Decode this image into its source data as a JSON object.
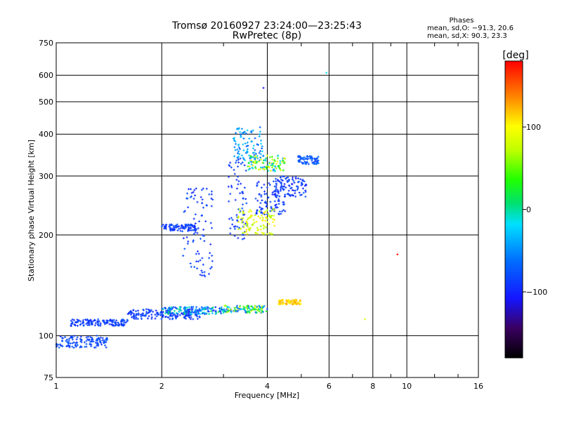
{
  "header": {
    "title_line1": "Tromsø 20160927 23:24:00—23:25:43",
    "title_line2": "RwPretec (8p)",
    "phase_title": "Phases",
    "phase_o": "mean, sd,O: −91.3, 20.6",
    "phase_x": "mean, sd,X:  90.3, 23.3"
  },
  "colorbar": {
    "label": "[deg]",
    "range": [
      -180,
      180
    ],
    "ticks": [
      100,
      0,
      -100
    ],
    "tick_labels": [
      "100",
      "0",
      "−100"
    ]
  },
  "chart_data": {
    "type": "scatter",
    "xlabel": "Frequency [MHz]",
    "ylabel": "Stationary phase Virtual Height [km]",
    "xscale": "log",
    "yscale": "log",
    "xlim": [
      1,
      16
    ],
    "ylim": [
      75,
      750
    ],
    "xticks": [
      1,
      2,
      4,
      6,
      8,
      10,
      16
    ],
    "xtick_labels": [
      "1",
      "2",
      "4",
      "6",
      "8",
      "10",
      "16"
    ],
    "yticks": [
      75,
      100,
      200,
      300,
      400,
      500,
      600,
      750
    ],
    "ytick_labels": [
      "75",
      "100",
      "200",
      "300",
      "400",
      "500",
      "600",
      "750"
    ],
    "grid": true,
    "point_groups": [
      {
        "f": [
          1.0,
          1.4
        ],
        "h": [
          92,
          100
        ],
        "phase": [
          -95,
          -70
        ]
      },
      {
        "f": [
          1.1,
          1.6
        ],
        "h": [
          107,
          112
        ],
        "phase": [
          -100,
          -75
        ]
      },
      {
        "f": [
          1.6,
          2.6
        ],
        "h": [
          112,
          120
        ],
        "phase": [
          -100,
          -75
        ]
      },
      {
        "f": [
          2.0,
          3.0
        ],
        "h": [
          116,
          122
        ],
        "phase": [
          -110,
          20
        ]
      },
      {
        "f": [
          3.0,
          4.0
        ],
        "h": [
          117,
          123
        ],
        "phase": [
          -90,
          110
        ]
      },
      {
        "f": [
          4.3,
          5.0
        ],
        "h": [
          124,
          128
        ],
        "phase": [
          95,
          130
        ]
      },
      {
        "f": [
          2.0,
          2.5
        ],
        "h": [
          205,
          215
        ],
        "phase": [
          -100,
          -75
        ]
      },
      {
        "f": [
          2.3,
          2.8
        ],
        "h": [
          150,
          280
        ],
        "phase": [
          -100,
          -75
        ]
      },
      {
        "f": [
          3.1,
          3.5
        ],
        "h": [
          190,
          340
        ],
        "phase": [
          -100,
          -75
        ]
      },
      {
        "f": [
          3.2,
          3.9
        ],
        "h": [
          330,
          420
        ],
        "phase": [
          -80,
          -20
        ]
      },
      {
        "f": [
          3.5,
          4.5
        ],
        "h": [
          310,
          345
        ],
        "phase": [
          -60,
          110
        ]
      },
      {
        "f": [
          3.7,
          4.5
        ],
        "h": [
          230,
          290
        ],
        "phase": [
          -100,
          -75
        ]
      },
      {
        "f": [
          3.3,
          4.2
        ],
        "h": [
          200,
          240
        ],
        "phase": [
          60,
          110
        ]
      },
      {
        "f": [
          4.2,
          5.2
        ],
        "h": [
          260,
          300
        ],
        "phase": [
          -110,
          -70
        ]
      },
      {
        "f": [
          4.9,
          5.6
        ],
        "h": [
          325,
          345
        ],
        "phase": [
          -90,
          -60
        ]
      }
    ],
    "isolated_points": [
      {
        "f": 7.6,
        "h": 112,
        "phase": 80
      },
      {
        "f": 9.4,
        "h": 175,
        "phase": 175
      },
      {
        "f": 5.9,
        "h": 610,
        "phase": -20
      },
      {
        "f": 3.9,
        "h": 550,
        "phase": -110
      }
    ]
  }
}
